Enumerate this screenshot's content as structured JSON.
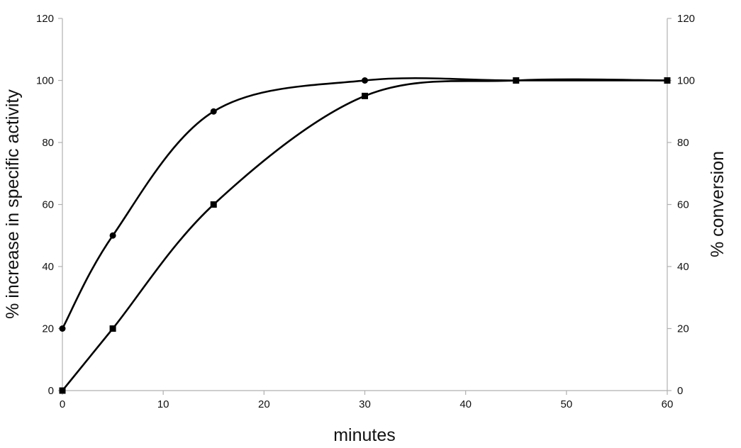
{
  "chart_data": {
    "type": "line",
    "title": "",
    "xlabel": "minutes",
    "ylabel": "% increase in specific activity",
    "y2label": "% conversion",
    "xlim": [
      0,
      60
    ],
    "ylim": [
      0,
      120
    ],
    "y2lim": [
      0,
      120
    ],
    "x_ticks": [
      0,
      10,
      20,
      30,
      40,
      50,
      60
    ],
    "y_ticks": [
      0,
      20,
      40,
      60,
      80,
      100,
      120
    ],
    "y2_ticks": [
      0,
      20,
      40,
      60,
      80,
      100,
      120
    ],
    "grid": false,
    "legend": "none",
    "series": [
      {
        "marker": "circle",
        "axis": "left",
        "x": [
          0,
          5,
          15,
          30,
          45,
          60
        ],
        "y": [
          20,
          50,
          90,
          100,
          100,
          100
        ]
      },
      {
        "marker": "square",
        "axis": "right",
        "x": [
          0,
          5,
          15,
          30,
          45,
          60
        ],
        "y": [
          0,
          20,
          60,
          95,
          100,
          100
        ]
      }
    ],
    "colors": {
      "line": "#000000",
      "axis": "#b0b0b0"
    }
  }
}
